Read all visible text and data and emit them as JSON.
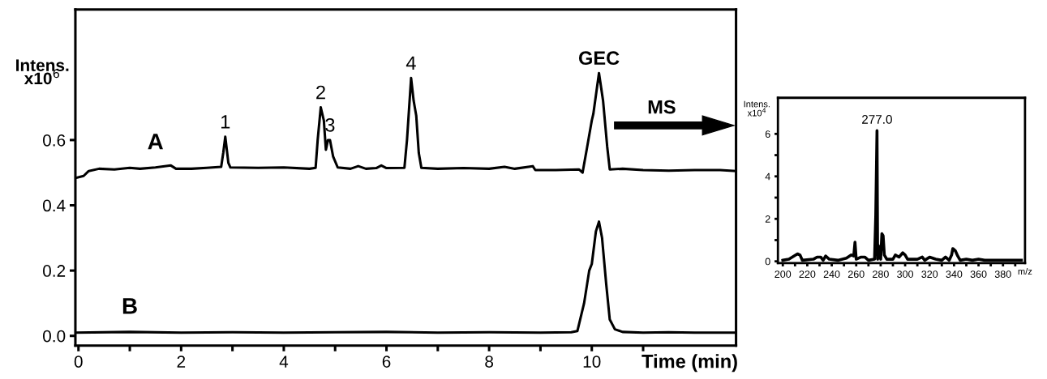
{
  "chart_data": [
    {
      "type": "line",
      "xlabel": "Time (min)",
      "ylabel": "Intens.\nx10$^{6}$",
      "xlim": [
        -0.06,
        12.81
      ],
      "ylim": [
        -0.03,
        1.0
      ],
      "xticks": [
        0,
        {
          "value": 1,
          "label": null
        },
        2,
        {
          "value": 3,
          "label": null
        },
        4,
        {
          "value": 5,
          "label": null
        },
        6,
        {
          "value": 7,
          "label": null
        },
        8,
        {
          "value": 9,
          "label": null
        },
        10,
        {
          "value": 11,
          "label": null
        }
      ],
      "yticks": [
        {
          "value": 0,
          "label": "0.0"
        },
        0.2,
        0.4,
        0.6
      ],
      "grid": false,
      "legend": false,
      "marker": "none",
      "line_style": "solid",
      "series": [
        {
          "name": "A",
          "color": "#000000",
          "x": [
            -0.05,
            0.1,
            0.2,
            0.4,
            0.7,
            1.0,
            1.2,
            1.5,
            1.8,
            1.9,
            2.2,
            2.5,
            2.78,
            2.82,
            2.86,
            2.92,
            2.96,
            3.5,
            4.0,
            4.5,
            4.62,
            4.66,
            4.72,
            4.78,
            4.82,
            4.86,
            4.9,
            4.96,
            5.05,
            5.3,
            5.45,
            5.6,
            5.8,
            5.9,
            6.0,
            6.35,
            6.4,
            6.48,
            6.53,
            6.58,
            6.63,
            6.68,
            7.0,
            7.5,
            8.0,
            8.3,
            8.5,
            8.85,
            8.9,
            9.3,
            9.75,
            9.82,
            9.9,
            10.0,
            10.03,
            10.14,
            10.22,
            10.3,
            10.35,
            10.6,
            11.0,
            11.5,
            12.0,
            12.5,
            12.8
          ],
          "values": [
            0.484,
            0.49,
            0.505,
            0.512,
            0.51,
            0.515,
            0.512,
            0.516,
            0.522,
            0.512,
            0.512,
            0.515,
            0.518,
            0.56,
            0.61,
            0.53,
            0.516,
            0.515,
            0.516,
            0.512,
            0.515,
            0.6,
            0.7,
            0.66,
            0.57,
            0.6,
            0.6,
            0.55,
            0.516,
            0.512,
            0.52,
            0.512,
            0.514,
            0.522,
            0.514,
            0.515,
            0.6,
            0.79,
            0.72,
            0.675,
            0.56,
            0.515,
            0.512,
            0.514,
            0.512,
            0.518,
            0.512,
            0.52,
            0.508,
            0.508,
            0.51,
            0.5,
            0.57,
            0.66,
            0.68,
            0.805,
            0.72,
            0.58,
            0.51,
            0.512,
            0.508,
            0.506,
            0.508,
            0.508,
            0.505
          ]
        },
        {
          "name": "B",
          "color": "#000000",
          "x": [
            -0.05,
            1,
            2,
            3,
            4,
            5,
            6,
            7,
            8,
            9,
            9.6,
            9.72,
            9.85,
            9.95,
            10.0,
            10.08,
            10.14,
            10.2,
            10.28,
            10.35,
            10.45,
            10.6,
            11,
            11.5,
            12,
            12.8
          ],
          "values": [
            0.01,
            0.012,
            0.01,
            0.011,
            0.01,
            0.011,
            0.012,
            0.01,
            0.011,
            0.01,
            0.011,
            0.015,
            0.1,
            0.2,
            0.22,
            0.32,
            0.35,
            0.3,
            0.16,
            0.05,
            0.02,
            0.012,
            0.01,
            0.011,
            0.01,
            0.01
          ]
        }
      ],
      "annotations": [
        {
          "text": "1",
          "x": 2.86,
          "y": 0.61
        },
        {
          "text": "2",
          "x": 4.72,
          "y": 0.7
        },
        {
          "text": "3",
          "x": 4.9,
          "y": 0.6
        },
        {
          "text": "4",
          "x": 6.48,
          "y": 0.79
        },
        {
          "text": "GEC",
          "x": 10.14,
          "y": 0.805
        },
        "MS"
      ]
    },
    {
      "type": "line",
      "xlabel": "m/z",
      "ylabel": "Intens.\nx10$^{4}$",
      "xlim": [
        196,
        398
      ],
      "ylim": [
        -0.08,
        7.7
      ],
      "xticks": [
        200,
        {
          "value": 210,
          "label": null
        },
        220,
        {
          "value": 230,
          "label": null
        },
        240,
        {
          "value": 250,
          "label": null
        },
        260,
        {
          "value": 270,
          "label": null
        },
        280,
        {
          "value": 290,
          "label": null
        },
        300,
        {
          "value": 310,
          "label": null
        },
        320,
        {
          "value": 330,
          "label": null
        },
        340,
        {
          "value": 350,
          "label": null
        },
        360,
        {
          "value": 370,
          "label": null
        },
        380,
        {
          "value": 390,
          "label": null
        }
      ],
      "yticks": [
        0,
        {
          "value": 1,
          "label": null
        },
        2,
        {
          "value": 3,
          "label": null
        },
        4,
        {
          "value": 5,
          "label": null
        },
        6
      ],
      "grid": false,
      "legend": false,
      "marker": "none",
      "line_style": "solid",
      "series": [
        {
          "color": "#000000",
          "x": [
            200,
            205,
            212,
            214,
            216,
            225,
            228,
            231,
            233,
            235,
            238,
            245,
            252,
            256,
            258,
            259,
            260,
            264,
            267,
            270,
            275,
            276,
            277,
            277.5,
            278,
            279,
            280,
            281,
            282,
            283,
            285,
            290,
            292,
            295,
            298,
            300,
            302,
            310,
            314,
            316,
            320,
            325,
            330,
            333,
            336,
            338,
            339,
            341,
            343,
            345,
            350,
            355,
            360,
            365,
            370,
            380,
            390,
            395
          ],
          "values": [
            0.05,
            0.1,
            0.35,
            0.3,
            0.05,
            0.1,
            0.2,
            0.2,
            0.05,
            0.25,
            0.1,
            0.05,
            0.15,
            0.3,
            0.25,
            0.9,
            0.1,
            0.2,
            0.2,
            0.05,
            0.1,
            2.2,
            6.15,
            0.1,
            0.75,
            0.6,
            0.1,
            1.3,
            1.2,
            0.3,
            0.1,
            0.1,
            0.3,
            0.2,
            0.4,
            0.3,
            0.1,
            0.1,
            0.2,
            0.05,
            0.2,
            0.1,
            0.05,
            0.2,
            0.05,
            0.3,
            0.6,
            0.5,
            0.25,
            0.05,
            0.1,
            0.05,
            0.1,
            0.05,
            0.05,
            0.05,
            0.05,
            0.05
          ]
        }
      ],
      "annotations": [
        {
          "text": "277.0",
          "x": 277,
          "y": 6.15
        }
      ]
    }
  ]
}
